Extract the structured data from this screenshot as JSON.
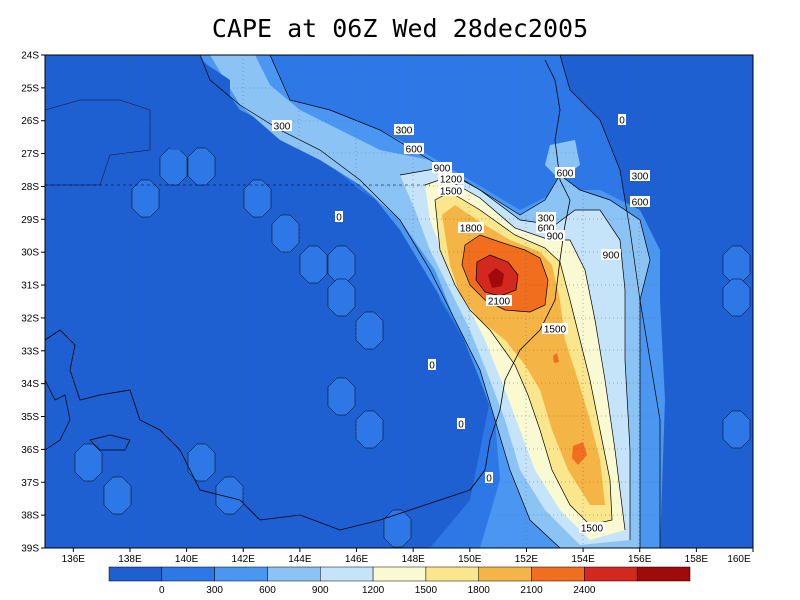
{
  "title": "CAPE at 06Z Wed 28dec2005",
  "latitude_labels": [
    "24S",
    "25S",
    "26S",
    "27S",
    "28S",
    "29S",
    "30S",
    "31S",
    "32S",
    "33S",
    "34S",
    "35S",
    "36S",
    "37S",
    "38S",
    "39S"
  ],
  "longitude_labels": [
    "136E",
    "138E",
    "140E",
    "142E",
    "144E",
    "146E",
    "148E",
    "150E",
    "152E",
    "154E",
    "156E",
    "158E",
    "160E"
  ],
  "colorbar": {
    "colors": [
      "#1e5fd2",
      "#2d78e6",
      "#4a96f0",
      "#8cc3f5",
      "#c5e4fa",
      "#fafad2",
      "#fae68c",
      "#f5b446",
      "#f06e1e",
      "#d2281e",
      "#a00a0a"
    ],
    "labels": [
      "0",
      "300",
      "600",
      "900",
      "1200",
      "1500",
      "1800",
      "2100",
      "2400"
    ]
  },
  "contour_labels": [
    {
      "text": "300"
    },
    {
      "text": "300"
    },
    {
      "text": "600"
    },
    {
      "text": "900"
    },
    {
      "text": "1200"
    },
    {
      "text": "1500"
    },
    {
      "text": "0"
    },
    {
      "text": "1800"
    },
    {
      "text": "2100"
    },
    {
      "text": "300"
    },
    {
      "text": "600"
    },
    {
      "text": "900"
    },
    {
      "text": "600"
    },
    {
      "text": "300"
    },
    {
      "text": "600"
    },
    {
      "text": "900"
    },
    {
      "text": "1500"
    },
    {
      "text": "0"
    },
    {
      "text": "0"
    },
    {
      "text": "0"
    },
    {
      "text": "1500"
    },
    {
      "text": "0"
    }
  ]
}
